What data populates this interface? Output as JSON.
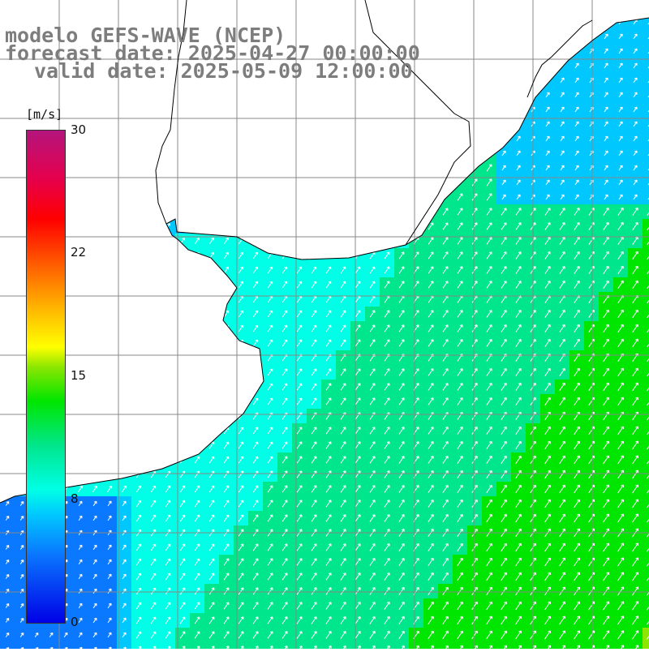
{
  "titles": {
    "line1": "modelo GEFS-WAVE (NCEP)",
    "line2": "forecast date: 2025-04-27 00:00:00",
    "line3": "valid date: 2025-05-09 12:00:00"
  },
  "colorbar": {
    "unit": "[m/s]",
    "ticks": [
      "30",
      "22",
      "15",
      "8",
      "0"
    ],
    "min": 0,
    "max": 30,
    "colors": [
      "#0000e6",
      "#0a78ff",
      "#00c8ff",
      "#00ffe6",
      "#00e68c",
      "#00e600",
      "#8ce600",
      "#ffff00",
      "#ffb400",
      "#ff5000",
      "#ff0000",
      "#e6004b",
      "#b4147d"
    ]
  },
  "map": {
    "land_color": "#ffffff",
    "grid_color": "#888888",
    "coast_color": "#000000",
    "arrow_color": "#ffffff",
    "wind_direction": "from south-west"
  }
}
